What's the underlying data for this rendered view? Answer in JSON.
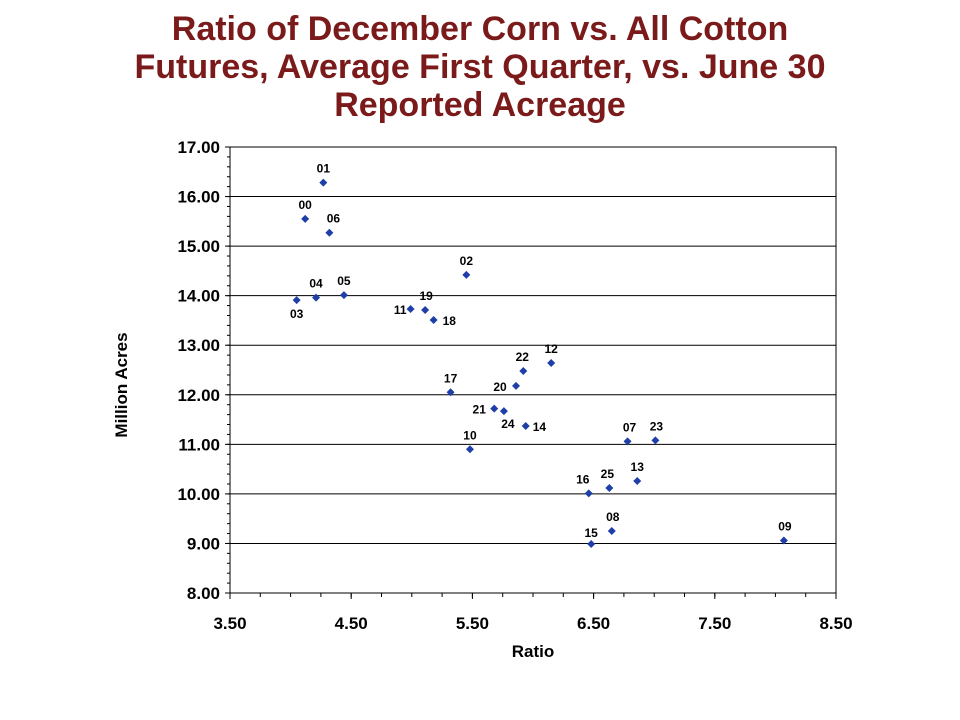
{
  "chart_data": {
    "type": "scatter",
    "title_lines": [
      "Ratio of December Corn vs. All Cotton",
      "Futures, Average First Quarter, vs. June 30",
      "Reported Acreage"
    ],
    "xlabel": "Ratio",
    "ylabel": "Million Acres",
    "xlim": [
      3.5,
      8.5
    ],
    "ylim": [
      8.0,
      17.0
    ],
    "xticks": [
      "3.50",
      "4.50",
      "5.50",
      "6.50",
      "7.50",
      "8.50"
    ],
    "yticks": [
      "8.00",
      "9.00",
      "10.00",
      "11.00",
      "12.00",
      "13.00",
      "14.00",
      "15.00",
      "16.00",
      "17.00"
    ],
    "grid": "horizontal",
    "marker_color": "#1f3fa8",
    "points": [
      {
        "label": "00",
        "x": 4.12,
        "y": 15.55
      },
      {
        "label": "01",
        "x": 4.27,
        "y": 16.28
      },
      {
        "label": "02",
        "x": 5.45,
        "y": 14.42
      },
      {
        "label": "03",
        "x": 4.05,
        "y": 13.91
      },
      {
        "label": "04",
        "x": 4.21,
        "y": 13.96
      },
      {
        "label": "05",
        "x": 4.44,
        "y": 14.01
      },
      {
        "label": "06",
        "x": 4.32,
        "y": 15.27
      },
      {
        "label": "07",
        "x": 6.78,
        "y": 11.06
      },
      {
        "label": "08",
        "x": 6.65,
        "y": 9.25
      },
      {
        "label": "09",
        "x": 8.07,
        "y": 9.06
      },
      {
        "label": "10",
        "x": 5.48,
        "y": 10.9
      },
      {
        "label": "11",
        "x": 4.99,
        "y": 13.73
      },
      {
        "label": "12",
        "x": 6.15,
        "y": 12.64
      },
      {
        "label": "13",
        "x": 6.86,
        "y": 10.26
      },
      {
        "label": "14",
        "x": 5.94,
        "y": 11.37
      },
      {
        "label": "15",
        "x": 6.48,
        "y": 8.99
      },
      {
        "label": "16",
        "x": 6.46,
        "y": 10.01
      },
      {
        "label": "17",
        "x": 5.32,
        "y": 12.05
      },
      {
        "label": "18",
        "x": 5.18,
        "y": 13.51
      },
      {
        "label": "19",
        "x": 5.11,
        "y": 13.71
      },
      {
        "label": "20",
        "x": 5.86,
        "y": 12.18
      },
      {
        "label": "21",
        "x": 5.68,
        "y": 11.72
      },
      {
        "label": "22",
        "x": 5.92,
        "y": 12.48
      },
      {
        "label": "23",
        "x": 7.01,
        "y": 11.08
      },
      {
        "label": "24",
        "x": 5.76,
        "y": 11.67
      },
      {
        "label": "25",
        "x": 6.63,
        "y": 10.12
      }
    ]
  }
}
